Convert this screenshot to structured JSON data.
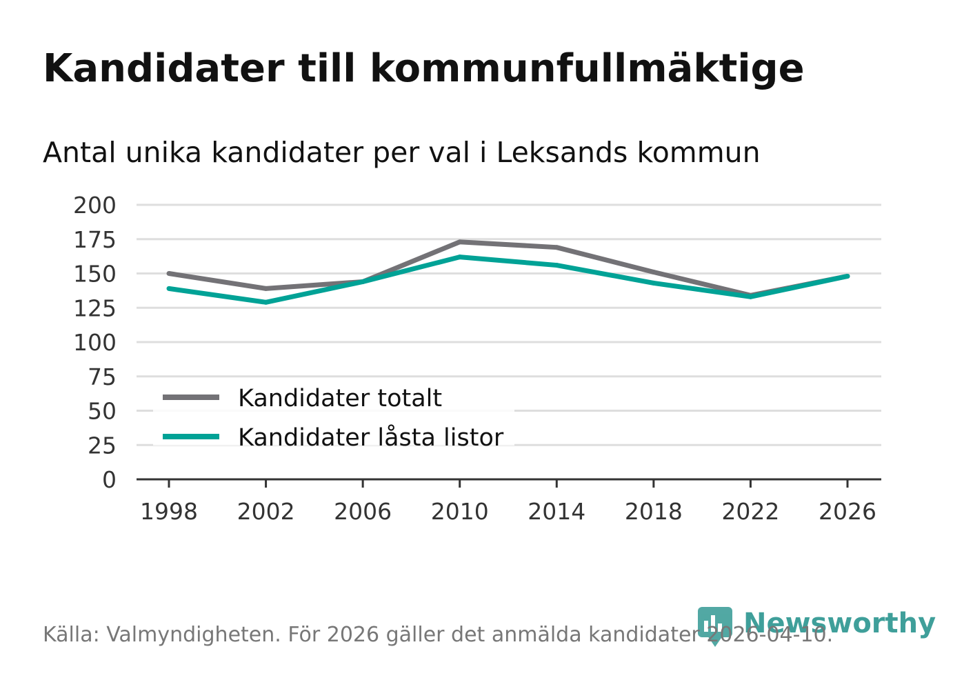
{
  "chart_data": {
    "type": "line",
    "title": "Kandidater till kommunfullmäktige",
    "subtitle": "Antal unika kandidater per val i Leksands kommun",
    "xlabel": "",
    "ylabel": "",
    "categories": [
      "1998",
      "2002",
      "2006",
      "2010",
      "2014",
      "2018",
      "2022",
      "2026"
    ],
    "y_ticks": [
      "0",
      "25",
      "50",
      "75",
      "100",
      "125",
      "150",
      "175",
      "200"
    ],
    "ylim": [
      0,
      200
    ],
    "grid": true,
    "legend_position": "bottom-left",
    "series": [
      {
        "name": "Kandidater totalt",
        "color": "#737276",
        "values": [
          150,
          139,
          144,
          173,
          169,
          151,
          134,
          148
        ]
      },
      {
        "name": "Kandidater låsta listor",
        "color": "#00a296",
        "values": [
          139,
          129,
          144,
          162,
          156,
          143,
          133,
          148
        ]
      }
    ]
  },
  "source": "Källa: Valmyndigheten. För 2026 gäller det anmälda kandidater 2026-04-10.",
  "logo": {
    "text": "Newsworthy",
    "color": "#3f9f9a"
  }
}
